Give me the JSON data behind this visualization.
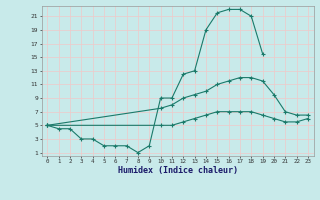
{
  "xlabel": "Humidex (Indice chaleur)",
  "bg_color": "#c8eaea",
  "grid_color": "#f0c8c8",
  "line_color": "#1a7a6a",
  "xlim": [
    -0.5,
    23.5
  ],
  "ylim": [
    0.5,
    22.5
  ],
  "xticks": [
    0,
    1,
    2,
    3,
    4,
    5,
    6,
    7,
    8,
    9,
    10,
    11,
    12,
    13,
    14,
    15,
    16,
    17,
    18,
    19,
    20,
    21,
    22,
    23
  ],
  "yticks": [
    1,
    3,
    5,
    7,
    9,
    11,
    13,
    15,
    17,
    19,
    21
  ],
  "line1_x": [
    0,
    1,
    2,
    3,
    4,
    5,
    6,
    7,
    8,
    9,
    10,
    11,
    12,
    13,
    14,
    15,
    16,
    17,
    18,
    19
  ],
  "line1_y": [
    5,
    4.5,
    4.5,
    3,
    3,
    2,
    2,
    2,
    1,
    2,
    9,
    9,
    12.5,
    13,
    19,
    21.5,
    22,
    22,
    21,
    15.5
  ],
  "line2_x": [
    0,
    10,
    11,
    12,
    13,
    14,
    15,
    16,
    17,
    18,
    19,
    20,
    21,
    22,
    23
  ],
  "line2_y": [
    5,
    7.5,
    8,
    9,
    9.5,
    10,
    11,
    11.5,
    12,
    12,
    11.5,
    9.5,
    7,
    6.5,
    6.5
  ],
  "line3_x": [
    0,
    10,
    11,
    12,
    13,
    14,
    15,
    16,
    17,
    18,
    19,
    20,
    21,
    22,
    23
  ],
  "line3_y": [
    5,
    5,
    5,
    5.5,
    6,
    6.5,
    7,
    7,
    7,
    7,
    6.5,
    6,
    5.5,
    5.5,
    6
  ]
}
